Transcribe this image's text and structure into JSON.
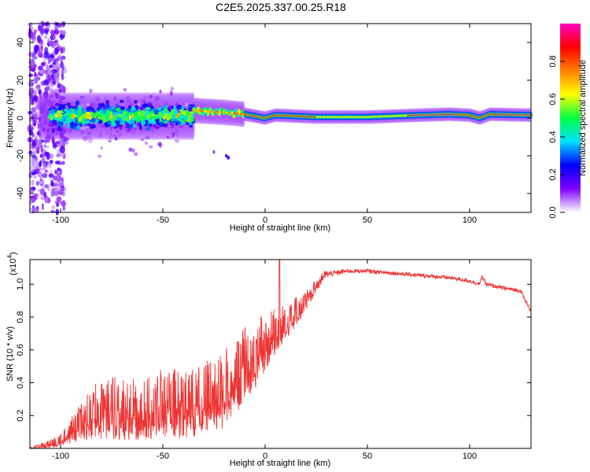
{
  "title": "C2E5.2025.337.00.25.R18",
  "chart_data": [
    {
      "type": "heatmap",
      "name": "spectrogram",
      "xlabel": "Height of straight line (km)",
      "ylabel": "Frequency (Hz)",
      "xlim": [
        -115,
        130
      ],
      "ylim": [
        -50,
        50
      ],
      "xticks": [
        -100,
        -50,
        0,
        50,
        100
      ],
      "xtick_labels": [
        "-100",
        "-50",
        "0",
        "50",
        "100"
      ],
      "yticks": [
        -40,
        -20,
        0,
        20,
        40
      ],
      "ytick_labels": [
        "-40",
        "-20",
        "0",
        "20",
        "40"
      ],
      "colorbar": {
        "label": "Normalized spectral amplitude",
        "range": [
          0,
          1
        ],
        "ticks": [
          0,
          0.2,
          0.4,
          0.6,
          0.8
        ],
        "tick_labels": [
          "0.0",
          "0.2",
          "0.4",
          "0.6",
          "0.8"
        ],
        "colors": [
          "#ffffff",
          "#8000ff",
          "#0000ff",
          "#00e0ff",
          "#00ff40",
          "#ffff00",
          "#ff8000",
          "#ff0000",
          "#ff00c0"
        ]
      },
      "features": [
        {
          "x_range": [
            -115,
            -100
          ],
          "desc": "broadband scatter",
          "f_range": [
            -50,
            50
          ],
          "amplitude": 0.15
        },
        {
          "x_range": [
            -105,
            -35
          ],
          "desc": "noisy band",
          "f_range": [
            -12,
            14
          ],
          "center_amplitude": 0.5
        },
        {
          "x_range": [
            -35,
            -10
          ],
          "desc": "narrowing band",
          "f_center": 3,
          "amplitude": 0.7
        },
        {
          "x_range": [
            -10,
            130
          ],
          "desc": "narrow tone",
          "f_center": 1,
          "amplitude": 0.9
        }
      ],
      "ridge": {
        "x": [
          -35,
          -20,
          -10,
          0,
          5,
          15,
          25,
          50,
          75,
          90,
          100,
          105,
          110,
          130
        ],
        "f": [
          4,
          3,
          2,
          0,
          1.5,
          1,
          0.5,
          0.5,
          1.5,
          2,
          1.5,
          0,
          2,
          1.5
        ]
      }
    },
    {
      "type": "line",
      "name": "snr",
      "xlabel": "Height of straight line (km)",
      "ylabel": "SNR (10 * v/v)",
      "ymultiplier_label": "(x10",
      "ymultiplier_exp": "4",
      "ymultiplier_close": ")",
      "xlim": [
        -115,
        130
      ],
      "ylim": [
        0,
        1.15
      ],
      "xticks": [
        -100,
        -50,
        0,
        50,
        100
      ],
      "xtick_labels": [
        "-100",
        "-50",
        "0",
        "50",
        "100"
      ],
      "yticks": [
        0.2,
        0.4,
        0.6,
        0.8,
        1.0
      ],
      "ytick_labels": [
        "0.2",
        "0.4",
        "0.6",
        "0.8",
        "1.0"
      ],
      "color": "#ee3333",
      "baseline": {
        "x": [
          -115,
          -105,
          -100,
          -95,
          -90,
          -80,
          -70,
          -60,
          -50,
          -40,
          -30,
          -20,
          -15,
          -10,
          -5,
          0,
          5,
          10,
          15,
          20,
          25,
          30,
          40,
          50,
          60,
          70,
          80,
          90,
          100,
          105,
          106,
          108,
          115,
          125,
          128,
          130
        ],
        "y": [
          0.0,
          0.02,
          0.04,
          0.08,
          0.13,
          0.18,
          0.18,
          0.19,
          0.2,
          0.2,
          0.24,
          0.28,
          0.36,
          0.42,
          0.5,
          0.6,
          0.68,
          0.74,
          0.8,
          0.88,
          0.98,
          1.06,
          1.08,
          1.08,
          1.07,
          1.06,
          1.05,
          1.04,
          1.02,
          1.0,
          1.05,
          1.0,
          0.98,
          0.96,
          0.88,
          0.84
        ]
      },
      "noise_amplitude": {
        "x": [
          -115,
          -100,
          -90,
          -80,
          -40,
          -20,
          -10,
          0,
          10,
          20,
          30,
          40,
          130
        ],
        "a": [
          0.005,
          0.03,
          0.1,
          0.16,
          0.18,
          0.2,
          0.2,
          0.16,
          0.1,
          0.05,
          0.02,
          0.012,
          0.012
        ]
      },
      "annotations": [
        {
          "x": 7,
          "y": 1.15,
          "desc": "spike peak"
        },
        {
          "x": 105.5,
          "y": 1.06,
          "desc": "local spike"
        }
      ]
    }
  ]
}
